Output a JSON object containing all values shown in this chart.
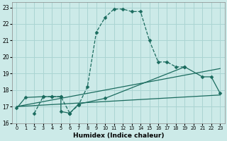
{
  "xlabel": "Humidex (Indice chaleur)",
  "bg_color": "#cceae8",
  "grid_color": "#aad4d2",
  "line_color": "#1a6b5e",
  "xlim": [
    -0.5,
    23.5
  ],
  "ylim": [
    16,
    23.3
  ],
  "yticks": [
    16,
    17,
    18,
    19,
    20,
    21,
    22,
    23
  ],
  "xticks": [
    0,
    1,
    2,
    3,
    4,
    5,
    6,
    7,
    8,
    9,
    10,
    11,
    12,
    13,
    14,
    15,
    16,
    17,
    18,
    19,
    20,
    21,
    22,
    23
  ],
  "series": [
    {
      "x": [
        2,
        3,
        4,
        5,
        6,
        7,
        8,
        9,
        10,
        11,
        12,
        13,
        14,
        15,
        16,
        17,
        18,
        19
      ],
      "y": [
        16.6,
        17.6,
        17.6,
        17.6,
        16.6,
        17.1,
        18.2,
        21.5,
        22.4,
        22.9,
        22.9,
        22.75,
        22.75,
        21.0,
        19.7,
        19.7,
        19.4,
        19.4
      ],
      "linestyle": "--",
      "marker": "D",
      "markersize": 2.5,
      "linewidth": 0.9
    },
    {
      "x": [
        0,
        1,
        3,
        4,
        5,
        5,
        6,
        6,
        7,
        10,
        19,
        21,
        22,
        23
      ],
      "y": [
        16.9,
        17.55,
        17.6,
        17.6,
        17.6,
        16.7,
        16.6,
        16.6,
        17.15,
        17.5,
        19.4,
        18.8,
        18.8,
        17.8
      ],
      "linestyle": "-",
      "marker": "D",
      "markersize": 2.5,
      "linewidth": 0.9
    },
    {
      "x": [
        0,
        23
      ],
      "y": [
        17.0,
        17.7
      ],
      "linestyle": "-",
      "marker": null,
      "markersize": 0,
      "linewidth": 0.9
    },
    {
      "x": [
        0,
        23
      ],
      "y": [
        17.0,
        19.3
      ],
      "linestyle": "-",
      "marker": null,
      "markersize": 0,
      "linewidth": 0.9
    }
  ]
}
